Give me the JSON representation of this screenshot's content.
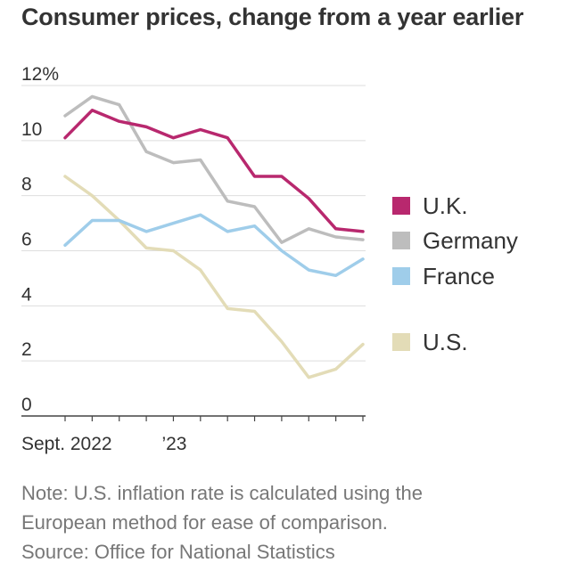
{
  "title": "Consumer prices, change from a year earlier",
  "note_line1": "Note: U.S. inflation rate is calculated using the",
  "note_line2": "European method for ease of comparison.",
  "source": "Source: Office for National Statistics",
  "colors": {
    "uk": "#b8286e",
    "germany": "#bdbdbd",
    "france": "#9fcdea",
    "us": "#e3dcb7",
    "grid": "#dedede",
    "axis": "#444444",
    "text": "#333333",
    "note": "#777777"
  },
  "chart_data": {
    "type": "line",
    "title": "Consumer prices, change from a year earlier",
    "xlabel": "",
    "ylabel": "",
    "x": [
      "2022-09",
      "2022-10",
      "2022-11",
      "2022-12",
      "2023-01",
      "2023-02",
      "2023-03",
      "2023-04",
      "2023-05",
      "2023-06",
      "2023-07",
      "2023-08"
    ],
    "x_tick_labels": [
      {
        "x": "2022-09",
        "label": "Sept. 2022"
      },
      {
        "x": "2023-01",
        "label": "’23"
      }
    ],
    "ylim": [
      0,
      12
    ],
    "y_ticks": [
      0,
      2,
      4,
      6,
      8,
      10,
      12
    ],
    "y_tick_labels": [
      "0",
      "2",
      "4",
      "6",
      "8",
      "10",
      "12%"
    ],
    "grid": true,
    "legend_position": "right",
    "series": [
      {
        "name": "U.K.",
        "key": "uk",
        "values": [
          10.1,
          11.1,
          10.7,
          10.5,
          10.1,
          10.4,
          10.1,
          8.7,
          8.7,
          7.9,
          6.8,
          6.7
        ]
      },
      {
        "name": "Germany",
        "key": "germany",
        "values": [
          10.9,
          11.6,
          11.3,
          9.6,
          9.2,
          9.3,
          7.8,
          7.6,
          6.3,
          6.8,
          6.5,
          6.4
        ]
      },
      {
        "name": "France",
        "key": "france",
        "values": [
          6.2,
          7.1,
          7.1,
          6.7,
          7.0,
          7.3,
          6.7,
          6.9,
          6.0,
          5.3,
          5.1,
          5.7
        ]
      },
      {
        "name": "U.S.",
        "key": "us",
        "values": [
          8.7,
          8.0,
          7.1,
          6.1,
          6.0,
          5.3,
          3.9,
          3.8,
          2.7,
          1.4,
          1.7,
          2.6
        ]
      }
    ]
  }
}
